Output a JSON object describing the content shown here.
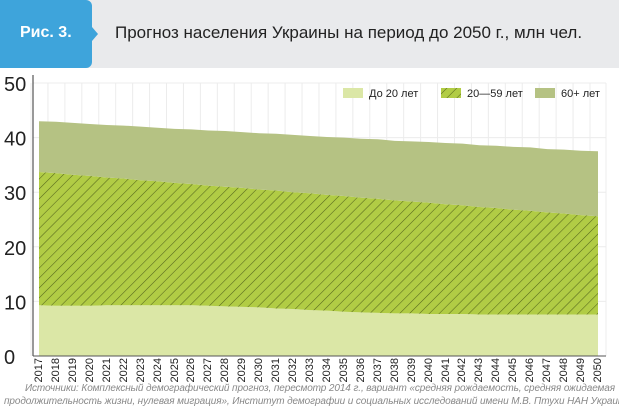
{
  "header": {
    "figure_label": "Рис. 3.",
    "title": "Прогноз населения Украины на период до 2050 г., млн чел."
  },
  "chart_data": {
    "type": "area",
    "stacked": true,
    "title": "Прогноз населения Украины на период до 2050 г., млн чел.",
    "x": [
      2017,
      2018,
      2019,
      2020,
      2021,
      2022,
      2023,
      2024,
      2025,
      2026,
      2027,
      2028,
      2029,
      2030,
      2031,
      2032,
      2033,
      2034,
      2035,
      2036,
      2037,
      2038,
      2039,
      2040,
      2041,
      2042,
      2043,
      2044,
      2045,
      2046,
      2047,
      2048,
      2049,
      2050
    ],
    "ylim": [
      0,
      50
    ],
    "yticks": [
      0,
      10,
      20,
      30,
      40,
      50
    ],
    "grid": true,
    "legend_position": "top-right",
    "series": [
      {
        "name": "До 20 лет",
        "color": "#dbe7a6",
        "pattern": "none",
        "values": [
          9.3,
          9.2,
          9.2,
          9.2,
          9.3,
          9.3,
          9.3,
          9.3,
          9.3,
          9.3,
          9.2,
          9.1,
          9.0,
          8.9,
          8.7,
          8.6,
          8.4,
          8.3,
          8.1,
          8.0,
          7.9,
          7.8,
          7.8,
          7.7,
          7.7,
          7.7,
          7.6,
          7.6,
          7.6,
          7.6,
          7.6,
          7.6,
          7.6,
          7.6
        ]
      },
      {
        "name": "20—59 лет",
        "color": "#b1cc45",
        "pattern": "hatch",
        "values": [
          24.4,
          24.3,
          24.0,
          23.8,
          23.4,
          23.2,
          22.9,
          22.7,
          22.4,
          22.2,
          22.0,
          21.9,
          21.8,
          21.6,
          21.6,
          21.4,
          21.4,
          21.2,
          21.2,
          21.0,
          20.9,
          20.7,
          20.5,
          20.4,
          20.1,
          19.9,
          19.7,
          19.5,
          19.2,
          19.0,
          18.7,
          18.5,
          18.2,
          18.0
        ]
      },
      {
        "name": "60+ лет",
        "color": "#b5c283",
        "pattern": "none",
        "values": [
          9.3,
          9.4,
          9.5,
          9.5,
          9.6,
          9.7,
          9.8,
          9.8,
          9.9,
          10.0,
          10.1,
          10.2,
          10.2,
          10.3,
          10.4,
          10.5,
          10.5,
          10.6,
          10.7,
          10.8,
          10.9,
          10.9,
          11.0,
          11.1,
          11.2,
          11.3,
          11.3,
          11.4,
          11.5,
          11.6,
          11.6,
          11.7,
          11.8,
          11.9
        ]
      }
    ]
  },
  "footnote": {
    "line1": "Источники: Комплексный демографический прогноз, пересмотр 2014 г., вариант «средняя рождаемость, средняя ожидаемая",
    "line2": "продолжительность жизни, нулевая миграция», Институт демографии и социальных исследований имени М.В. Птухи НАН Украины."
  }
}
